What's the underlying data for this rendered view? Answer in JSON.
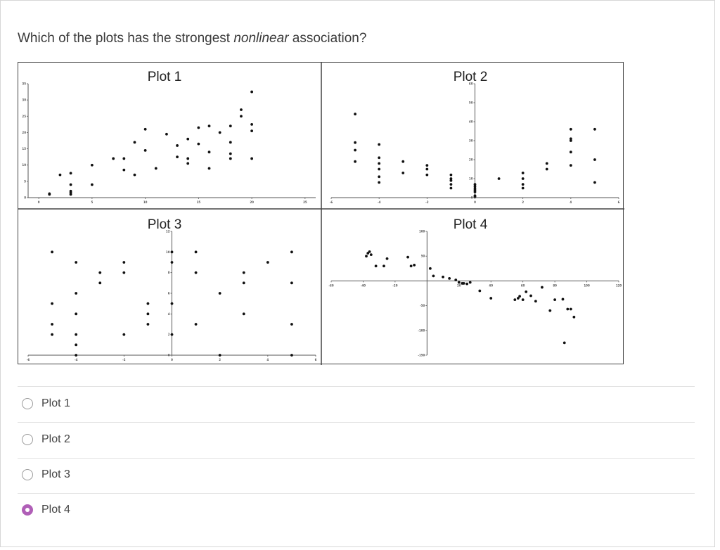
{
  "question": {
    "prefix": "Which of the plots has the strongest ",
    "emphasis": "nonlinear",
    "suffix": " association?"
  },
  "options": [
    {
      "label": "Plot 1",
      "selected": false
    },
    {
      "label": "Plot 2",
      "selected": false
    },
    {
      "label": "Plot 3",
      "selected": false
    },
    {
      "label": "Plot 4",
      "selected": true
    }
  ],
  "colors": {
    "accent": "#b05fb7",
    "divider": "#e2e2e2",
    "text": "#333333"
  },
  "chart_data": [
    {
      "type": "scatter",
      "title": "Plot 1",
      "xlim": [
        -1,
        26
      ],
      "ylim": [
        0,
        35
      ],
      "x_ticks": [
        0,
        5,
        10,
        15,
        20,
        25
      ],
      "y_ticks": [
        0,
        5,
        10,
        15,
        20,
        25,
        30,
        35
      ],
      "points": [
        [
          1,
          1
        ],
        [
          1,
          1.2
        ],
        [
          2,
          7
        ],
        [
          3,
          7.5
        ],
        [
          3,
          4
        ],
        [
          3,
          2
        ],
        [
          3,
          1.5
        ],
        [
          3,
          1
        ],
        [
          5,
          10
        ],
        [
          5,
          4
        ],
        [
          7,
          12
        ],
        [
          8,
          12
        ],
        [
          8,
          8.5
        ],
        [
          9,
          17
        ],
        [
          9,
          7
        ],
        [
          10,
          21
        ],
        [
          10,
          14.5
        ],
        [
          11,
          9
        ],
        [
          12,
          19.5
        ],
        [
          13,
          16
        ],
        [
          13,
          12.5
        ],
        [
          14,
          18
        ],
        [
          14,
          12
        ],
        [
          14,
          10.5
        ],
        [
          15,
          21.5
        ],
        [
          15,
          16.5
        ],
        [
          16,
          22
        ],
        [
          16,
          14
        ],
        [
          16,
          9
        ],
        [
          17,
          20
        ],
        [
          18,
          22
        ],
        [
          18,
          17
        ],
        [
          18,
          13.5
        ],
        [
          18,
          12
        ],
        [
          19,
          27
        ],
        [
          19,
          25
        ],
        [
          20,
          32.5
        ],
        [
          20,
          22.5
        ],
        [
          20,
          20.5
        ],
        [
          20,
          12
        ]
      ]
    },
    {
      "type": "scatter",
      "title": "Plot 2",
      "xlim": [
        -6,
        6
      ],
      "ylim": [
        0,
        60
      ],
      "x_ticks": [
        -6,
        -4,
        -2,
        0,
        2,
        4,
        6
      ],
      "y_ticks": [
        0,
        10,
        20,
        30,
        40,
        50,
        60
      ],
      "points": [
        [
          -5,
          44
        ],
        [
          -5,
          29
        ],
        [
          -5,
          25
        ],
        [
          -5,
          19
        ],
        [
          -4,
          28
        ],
        [
          -4,
          21
        ],
        [
          -4,
          18
        ],
        [
          -4,
          15
        ],
        [
          -4,
          11
        ],
        [
          -4,
          8
        ],
        [
          -3,
          19
        ],
        [
          -3,
          13
        ],
        [
          -2,
          17
        ],
        [
          -2,
          15
        ],
        [
          -2,
          12
        ],
        [
          -1,
          12
        ],
        [
          -1,
          10
        ],
        [
          -1,
          9
        ],
        [
          -1,
          7
        ],
        [
          -1,
          5
        ],
        [
          0,
          7
        ],
        [
          0,
          6
        ],
        [
          0,
          5
        ],
        [
          0,
          4
        ],
        [
          0,
          3
        ],
        [
          0,
          1
        ],
        [
          0,
          0.5
        ],
        [
          1,
          10
        ],
        [
          2,
          13
        ],
        [
          2,
          10
        ],
        [
          2,
          7
        ],
        [
          2,
          5
        ],
        [
          3,
          18
        ],
        [
          3,
          15
        ],
        [
          4,
          36
        ],
        [
          4,
          31
        ],
        [
          4,
          30
        ],
        [
          4,
          24
        ],
        [
          4,
          17
        ],
        [
          5,
          36
        ],
        [
          5,
          20
        ],
        [
          5,
          8
        ]
      ]
    },
    {
      "type": "scatter",
      "title": "Plot 3",
      "xlim": [
        -6,
        6
      ],
      "ylim": [
        0,
        12
      ],
      "x_ticks": [
        -6,
        -4,
        -2,
        0,
        2,
        4,
        6
      ],
      "y_ticks": [
        0,
        2,
        4,
        6,
        8,
        10,
        12
      ],
      "points": [
        [
          -5,
          10
        ],
        [
          -5,
          5
        ],
        [
          -5,
          3
        ],
        [
          -5,
          2
        ],
        [
          -4,
          9
        ],
        [
          -4,
          6
        ],
        [
          -4,
          4
        ],
        [
          -4,
          2
        ],
        [
          -4,
          1
        ],
        [
          -4,
          0
        ],
        [
          -3,
          8
        ],
        [
          -3,
          7
        ],
        [
          -2,
          9
        ],
        [
          -2,
          8
        ],
        [
          -2,
          2
        ],
        [
          -1,
          5
        ],
        [
          -1,
          4
        ],
        [
          -1,
          3
        ],
        [
          0,
          10
        ],
        [
          0,
          9
        ],
        [
          0,
          5
        ],
        [
          0,
          2
        ],
        [
          1,
          10
        ],
        [
          1,
          8
        ],
        [
          1,
          3
        ],
        [
          2,
          6
        ],
        [
          2,
          0
        ],
        [
          3,
          8
        ],
        [
          3,
          7
        ],
        [
          3,
          4
        ],
        [
          4,
          9
        ],
        [
          5,
          10
        ],
        [
          5,
          7
        ],
        [
          5,
          3
        ],
        [
          5,
          0
        ]
      ]
    },
    {
      "type": "scatter",
      "title": "Plot 4",
      "xlim": [
        -60,
        120
      ],
      "ylim": [
        -150,
        100
      ],
      "x_ticks": [
        -60,
        -40,
        -20,
        20,
        40,
        60,
        80,
        100,
        120
      ],
      "y_ticks": [
        100,
        50,
        -50,
        -100,
        -150
      ],
      "points": [
        [
          -38,
          50
        ],
        [
          -37,
          56
        ],
        [
          -36,
          59
        ],
        [
          -35,
          53
        ],
        [
          -32,
          30
        ],
        [
          -27,
          30
        ],
        [
          -25,
          45
        ],
        [
          -12,
          48
        ],
        [
          -10,
          30
        ],
        [
          -8,
          32
        ],
        [
          2,
          25
        ],
        [
          4,
          10
        ],
        [
          10,
          8
        ],
        [
          14,
          5
        ],
        [
          18,
          2
        ],
        [
          20,
          -3
        ],
        [
          22,
          -5
        ],
        [
          23,
          -5
        ],
        [
          25,
          -6
        ],
        [
          27,
          -3
        ],
        [
          33,
          -20
        ],
        [
          40,
          -35
        ],
        [
          55,
          -38
        ],
        [
          57,
          -35
        ],
        [
          58,
          -31
        ],
        [
          60,
          -38
        ],
        [
          62,
          -22
        ],
        [
          65,
          -30
        ],
        [
          68,
          -41
        ],
        [
          72,
          -13
        ],
        [
          77,
          -60
        ],
        [
          80,
          -38
        ],
        [
          85,
          -37
        ],
        [
          88,
          -57
        ],
        [
          90,
          -57
        ],
        [
          92,
          -73
        ],
        [
          86,
          -125
        ]
      ]
    }
  ]
}
